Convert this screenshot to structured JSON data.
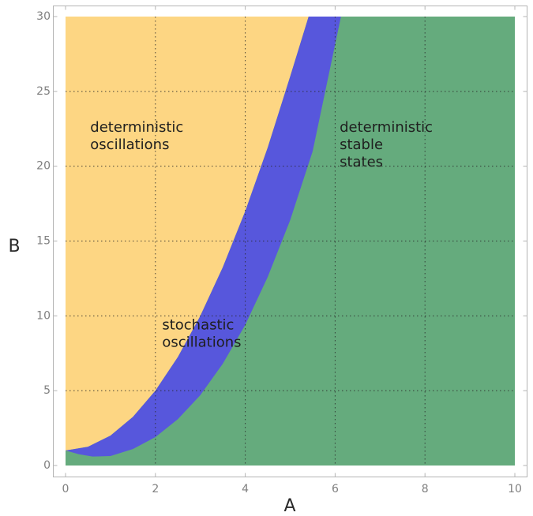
{
  "chart_data": {
    "type": "region",
    "title": "",
    "xlabel": "A",
    "ylabel": "B",
    "xlim": [
      0,
      10
    ],
    "ylim": [
      0,
      30
    ],
    "xticks": [
      0,
      2,
      4,
      6,
      8,
      10
    ],
    "yticks": [
      0,
      5,
      10,
      15,
      20,
      25,
      30
    ],
    "grid": true,
    "colors": {
      "deterministic_oscillations": "#fdd683",
      "stochastic_oscillations": "#5757dc",
      "deterministic_stable_states": "#65ab7d",
      "grid": "#2a2a2a",
      "frame": "#b4b4b4",
      "tick_label": "#808080"
    },
    "regions": {
      "upper_boundary": [
        [
          0,
          1
        ],
        [
          0.5,
          1.25
        ],
        [
          1,
          2
        ],
        [
          1.5,
          3.25
        ],
        [
          2,
          5
        ],
        [
          2.5,
          7.25
        ],
        [
          3,
          10
        ],
        [
          3.5,
          13.25
        ],
        [
          4,
          17
        ],
        [
          4.5,
          21.25
        ],
        [
          5,
          26
        ],
        [
          5.41,
          30
        ]
      ],
      "lower_boundary": [
        [
          0,
          1
        ],
        [
          0.3,
          0.75
        ],
        [
          0.6,
          0.6
        ],
        [
          1,
          0.63
        ],
        [
          1.5,
          1.1
        ],
        [
          2,
          1.9
        ],
        [
          2.5,
          3.1
        ],
        [
          3,
          4.7
        ],
        [
          3.5,
          6.8
        ],
        [
          4,
          9.4
        ],
        [
          4.5,
          12.6
        ],
        [
          5,
          16.4
        ],
        [
          5.5,
          21
        ],
        [
          6.13,
          30
        ]
      ]
    },
    "annotations": [
      {
        "lines": [
          "deterministic",
          "oscillations"
        ],
        "x": 0.55,
        "y": 22.3
      },
      {
        "lines": [
          "deterministic",
          "stable",
          "states"
        ],
        "x": 6.1,
        "y": 22.3
      },
      {
        "lines": [
          "stochastic",
          "oscillations"
        ],
        "x": 2.15,
        "y": 9.1
      }
    ]
  }
}
